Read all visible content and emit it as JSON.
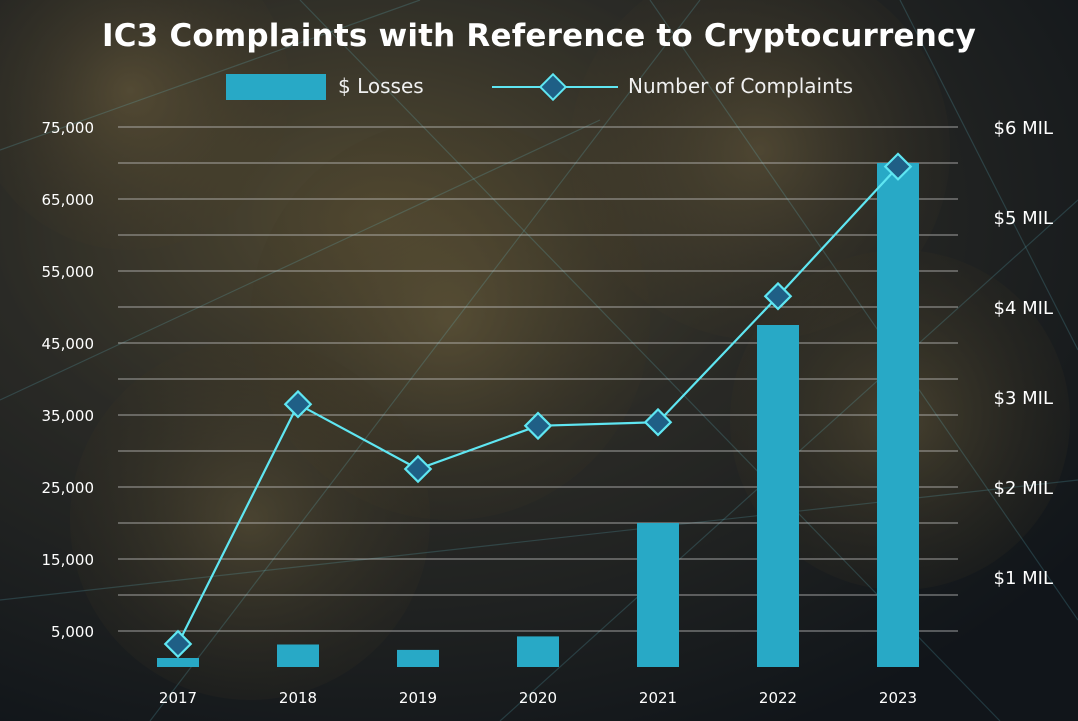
{
  "title": "IC3 Complaints with Reference to Cryptocurrency",
  "legend": {
    "bars_label": "$ Losses",
    "line_label": "Number of Complaints"
  },
  "colors": {
    "bar": "#28a9c6",
    "line": "#5fe6f2",
    "marker_fill": "#1f5f86",
    "grid": "#c9c9c9",
    "text": "#ffffff"
  },
  "chart_data": {
    "type": "bar",
    "title": "IC3 Complaints with Reference to Cryptocurrency",
    "categories": [
      "2017",
      "2018",
      "2019",
      "2020",
      "2021",
      "2022",
      "2023"
    ],
    "series": [
      {
        "name": "$ Losses",
        "type": "bar",
        "axis": "right",
        "values": [
          0.1,
          0.25,
          0.19,
          0.34,
          1.6,
          3.8,
          5.6
        ]
      },
      {
        "name": "Number of Complaints",
        "type": "line",
        "axis": "left",
        "values": [
          3200,
          36500,
          27500,
          33500,
          34000,
          51500,
          69500
        ]
      }
    ],
    "y_left": {
      "range": [
        0,
        75000
      ],
      "ticks": [
        5000,
        15000,
        25000,
        35000,
        45000,
        55000,
        65000,
        75000
      ],
      "tick_labels": [
        "5,000",
        "15,000",
        "25,000",
        "35,000",
        "45,000",
        "55,000",
        "65,000",
        "75,000"
      ]
    },
    "y_right": {
      "range": [
        0,
        6
      ],
      "ticks": [
        1,
        2,
        3,
        4,
        5,
        6
      ],
      "tick_labels": [
        "$1 MIL",
        "$2 MIL",
        "$3 MIL",
        "$4 MIL",
        "$5 MIL",
        "$6 MIL"
      ]
    },
    "grid": true,
    "legend_position": "top"
  }
}
